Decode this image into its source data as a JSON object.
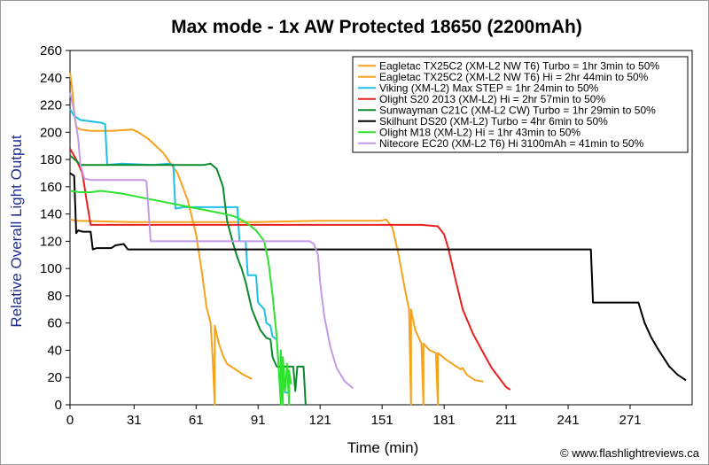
{
  "chart_data": {
    "type": "line",
    "title": "Max mode - 1x AW Protected 18650 (2200mAh)",
    "xlabel": "Time (min)",
    "ylabel": "Relative Overall Light Output",
    "credit": "© www.flashlightreviews.ca",
    "xlim": [
      0,
      301
    ],
    "ylim": [
      0,
      260
    ],
    "x_ticks": [
      0,
      31,
      61,
      91,
      121,
      151,
      181,
      211,
      241,
      271
    ],
    "y_ticks": [
      0,
      20,
      40,
      60,
      80,
      100,
      120,
      140,
      160,
      180,
      200,
      220,
      240,
      260
    ],
    "grid": false,
    "legend_position": "top-right",
    "series": [
      {
        "name": "Eagletac TX25C2 (XM-L2 NW T6) Turbo = 1hr 3min to 50%",
        "color": "#f7a21b",
        "points": [
          [
            0,
            244
          ],
          [
            1,
            232
          ],
          [
            2,
            215
          ],
          [
            3,
            204
          ],
          [
            5,
            202
          ],
          [
            10,
            201
          ],
          [
            20,
            201
          ],
          [
            30,
            202
          ],
          [
            33,
            200
          ],
          [
            38,
            195
          ],
          [
            45,
            185
          ],
          [
            52,
            170
          ],
          [
            57,
            150
          ],
          [
            61,
            125
          ],
          [
            64,
            95
          ],
          [
            66,
            72
          ],
          [
            68,
            60
          ],
          [
            69,
            35
          ],
          [
            70,
            0
          ],
          [
            70,
            58
          ],
          [
            72,
            45
          ],
          [
            74,
            36
          ],
          [
            76,
            30
          ],
          [
            80,
            26
          ],
          [
            84,
            22
          ],
          [
            88,
            19
          ]
        ]
      },
      {
        "name": "Eagletac TX25C2 (XM-L2 NW T6) Hi = 2hr 44min to 50%",
        "color": "#f7a21b",
        "points": [
          [
            0,
            136
          ],
          [
            3,
            135
          ],
          [
            30,
            134
          ],
          [
            60,
            134
          ],
          [
            90,
            134
          ],
          [
            120,
            135
          ],
          [
            150,
            135
          ],
          [
            153,
            136
          ],
          [
            156,
            130
          ],
          [
            159,
            110
          ],
          [
            162,
            85
          ],
          [
            164,
            70
          ],
          [
            165,
            0
          ],
          [
            165,
            70
          ],
          [
            167,
            55
          ],
          [
            170,
            45
          ],
          [
            171,
            0
          ],
          [
            171,
            45
          ],
          [
            174,
            40
          ],
          [
            177,
            38
          ],
          [
            178,
            0
          ],
          [
            178,
            38
          ],
          [
            182,
            33
          ],
          [
            188,
            27
          ],
          [
            189,
            26
          ],
          [
            190,
            27
          ],
          [
            192,
            22
          ],
          [
            196,
            18
          ],
          [
            200,
            17
          ]
        ]
      },
      {
        "name": "Viking (XM-L2) Max STEP = 1hr 24min to 50%",
        "color": "#1ec0e6",
        "points": [
          [
            0,
            217
          ],
          [
            2,
            212
          ],
          [
            5,
            209
          ],
          [
            15,
            207
          ],
          [
            17,
            206
          ],
          [
            18,
            176
          ],
          [
            25,
            177
          ],
          [
            40,
            176
          ],
          [
            48,
            177
          ],
          [
            50,
            176
          ],
          [
            51,
            144
          ],
          [
            55,
            145
          ],
          [
            70,
            145
          ],
          [
            81,
            145
          ],
          [
            82,
            120
          ],
          [
            85,
            120
          ],
          [
            86,
            95
          ],
          [
            90,
            95
          ],
          [
            91,
            75
          ],
          [
            94,
            70
          ],
          [
            95,
            60
          ],
          [
            97,
            58
          ],
          [
            98,
            50
          ],
          [
            100,
            48
          ],
          [
            101,
            28
          ],
          [
            103,
            27
          ],
          [
            104,
            9
          ],
          [
            106,
            9
          ]
        ]
      },
      {
        "name": "Olight S20 2013 (XM-L2) Hi = 2hr 57min to 50%",
        "color": "#e8201e",
        "points": [
          [
            0,
            188
          ],
          [
            3,
            180
          ],
          [
            6,
            170
          ],
          [
            8,
            150
          ],
          [
            10,
            132
          ],
          [
            15,
            132
          ],
          [
            40,
            132
          ],
          [
            80,
            132
          ],
          [
            120,
            132
          ],
          [
            150,
            132
          ],
          [
            170,
            132
          ],
          [
            178,
            131
          ],
          [
            181,
            125
          ],
          [
            183,
            115
          ],
          [
            186,
            95
          ],
          [
            190,
            70
          ],
          [
            195,
            52
          ],
          [
            200,
            38
          ],
          [
            204,
            27
          ],
          [
            208,
            19
          ],
          [
            211,
            13
          ],
          [
            213,
            11
          ]
        ]
      },
      {
        "name": "Sunwayman C21C (XM-L2 CW) Turbo = 1hr 29min to 50%",
        "color": "#0a8a2a",
        "points": [
          [
            0,
            183
          ],
          [
            3,
            179
          ],
          [
            5,
            176
          ],
          [
            10,
            176
          ],
          [
            30,
            176
          ],
          [
            50,
            176
          ],
          [
            60,
            176
          ],
          [
            65,
            176
          ],
          [
            68,
            177
          ],
          [
            71,
            173
          ],
          [
            74,
            160
          ],
          [
            76,
            135
          ],
          [
            79,
            118
          ],
          [
            81,
            108
          ],
          [
            83,
            100
          ],
          [
            85,
            90
          ],
          [
            88,
            70
          ],
          [
            92,
            55
          ],
          [
            95,
            49
          ],
          [
            97,
            48
          ],
          [
            98,
            35
          ],
          [
            100,
            28
          ],
          [
            108,
            28
          ],
          [
            109,
            10
          ],
          [
            110,
            28
          ],
          [
            113,
            28
          ],
          [
            114,
            0
          ]
        ]
      },
      {
        "name": "Skilhunt DS20 (XM-L2) Turbo = 4hr 6min to 50%",
        "color": "#000000",
        "points": [
          [
            0,
            170
          ],
          [
            2,
            168
          ],
          [
            3,
            126
          ],
          [
            4,
            128
          ],
          [
            6,
            127
          ],
          [
            10,
            127
          ],
          [
            11,
            114
          ],
          [
            13,
            115
          ],
          [
            20,
            115
          ],
          [
            22,
            117
          ],
          [
            26,
            118
          ],
          [
            28,
            114
          ],
          [
            40,
            114
          ],
          [
            80,
            114
          ],
          [
            120,
            114
          ],
          [
            160,
            114
          ],
          [
            200,
            114
          ],
          [
            240,
            114
          ],
          [
            252,
            114
          ],
          [
            253,
            75
          ],
          [
            270,
            75
          ],
          [
            275,
            75
          ],
          [
            276,
            70
          ],
          [
            278,
            60
          ],
          [
            281,
            50
          ],
          [
            284,
            42
          ],
          [
            287,
            35
          ],
          [
            290,
            28
          ],
          [
            294,
            22
          ],
          [
            298,
            18
          ]
        ]
      },
      {
        "name": "Olight M18 (XM-L2) Hi = 1hr 43min to 50%",
        "color": "#2ee32e",
        "points": [
          [
            0,
            157
          ],
          [
            5,
            156
          ],
          [
            10,
            156
          ],
          [
            15,
            157
          ],
          [
            25,
            155
          ],
          [
            35,
            152
          ],
          [
            45,
            149
          ],
          [
            55,
            146
          ],
          [
            65,
            143
          ],
          [
            75,
            140
          ],
          [
            80,
            138
          ],
          [
            85,
            134
          ],
          [
            90,
            128
          ],
          [
            94,
            120
          ],
          [
            96,
            105
          ],
          [
            98,
            80
          ],
          [
            100,
            50
          ],
          [
            101,
            25
          ],
          [
            102,
            0
          ],
          [
            102,
            40
          ],
          [
            103,
            0
          ],
          [
            103,
            35
          ],
          [
            104,
            10
          ],
          [
            105,
            30
          ],
          [
            106,
            0
          ],
          [
            106,
            25
          ],
          [
            107,
            15
          ]
        ]
      },
      {
        "name": "Nitecore EC20 (XM-L2 T6) Hi 3100mAh = 41min to 50%",
        "color": "#c49ae6",
        "points": [
          [
            0,
            229
          ],
          [
            2,
            215
          ],
          [
            4,
            195
          ],
          [
            5,
            176
          ],
          [
            7,
            166
          ],
          [
            10,
            165
          ],
          [
            20,
            165
          ],
          [
            36,
            165
          ],
          [
            37,
            164
          ],
          [
            39,
            120
          ],
          [
            45,
            120
          ],
          [
            60,
            120
          ],
          [
            80,
            120
          ],
          [
            100,
            120
          ],
          [
            116,
            120
          ],
          [
            118,
            118
          ],
          [
            120,
            110
          ],
          [
            121,
            90
          ],
          [
            123,
            65
          ],
          [
            126,
            42
          ],
          [
            129,
            27
          ],
          [
            133,
            17
          ],
          [
            137,
            12
          ]
        ]
      }
    ]
  }
}
